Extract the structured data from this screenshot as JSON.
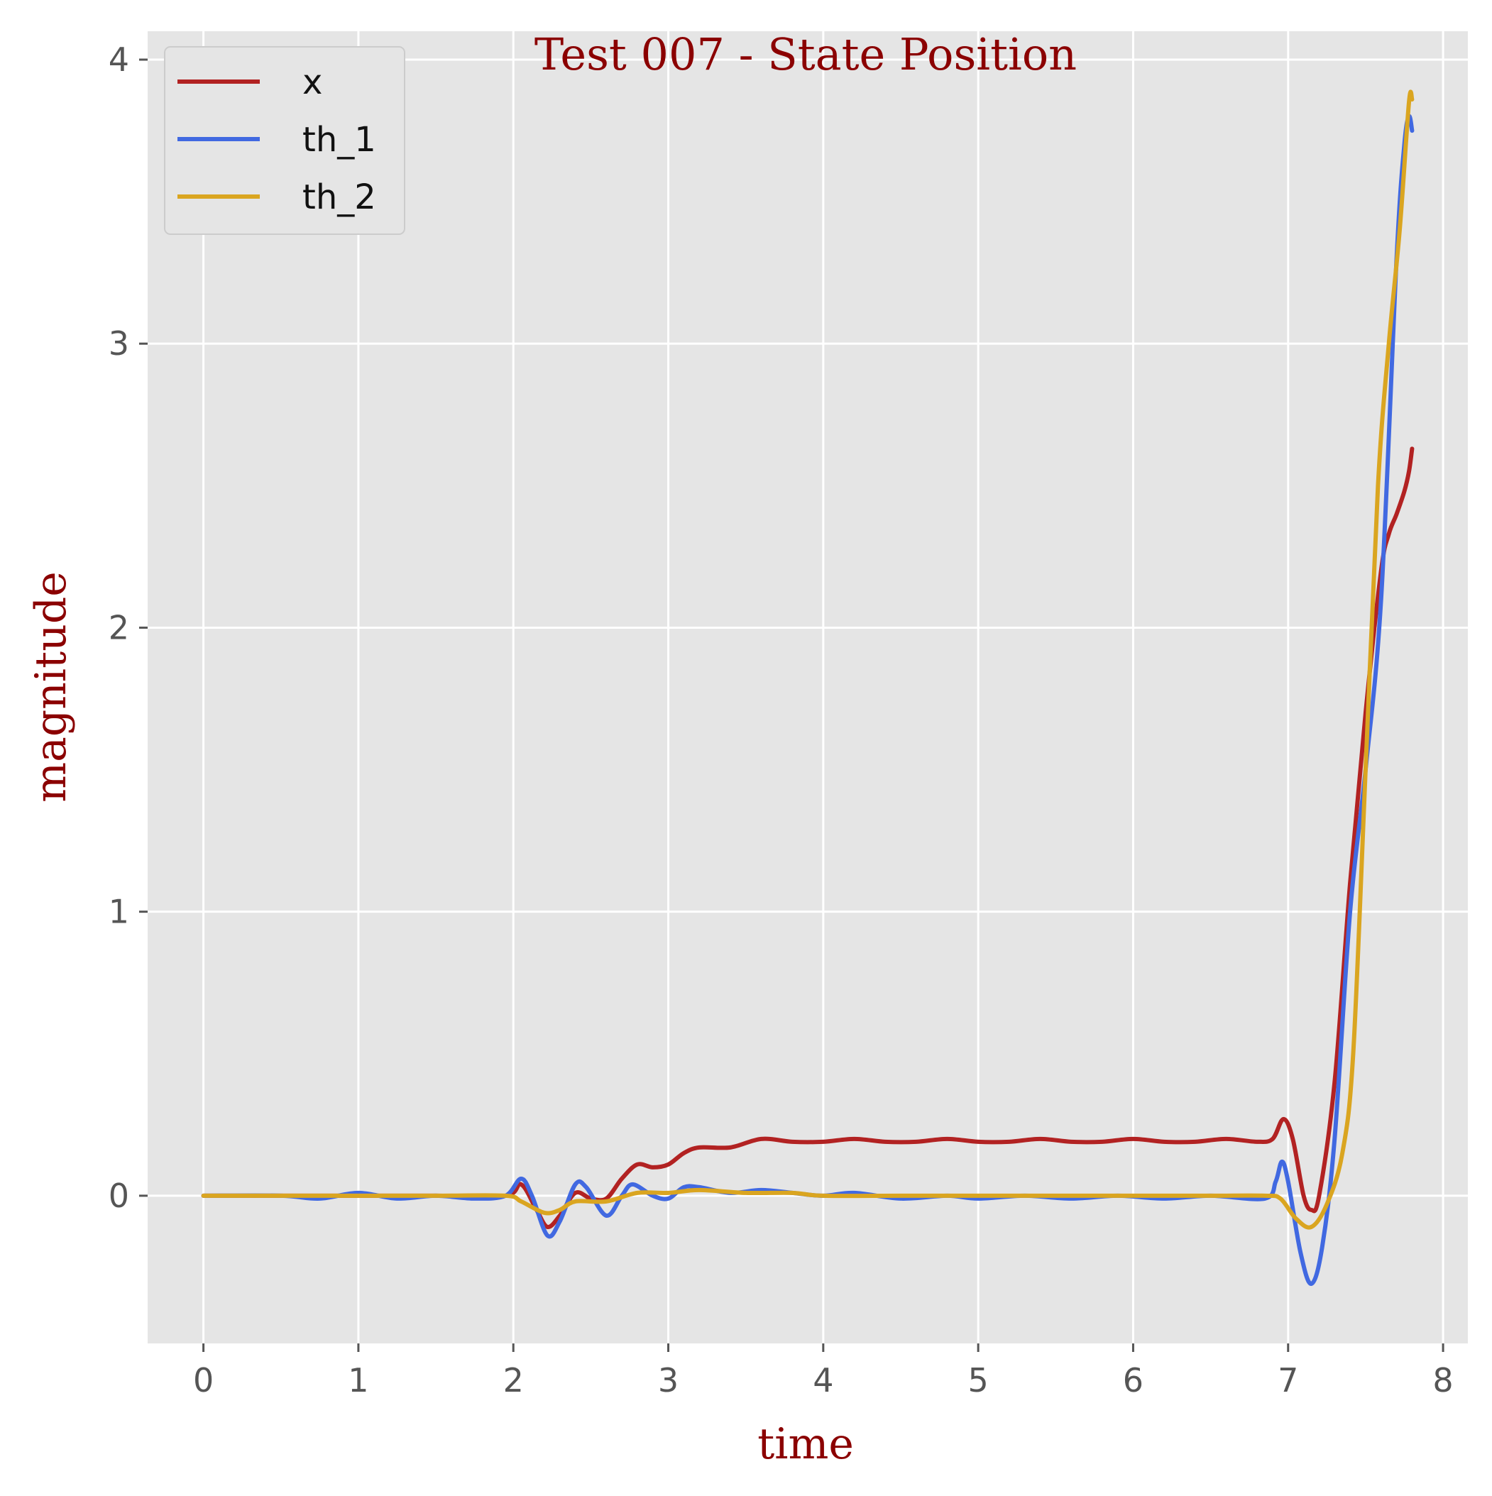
{
  "chart_data": {
    "type": "line",
    "title": "Test 007 - State Position",
    "xlabel": "time",
    "ylabel": "magnitude",
    "xlim": [
      -0.36,
      8.16
    ],
    "ylim": [
      -0.52,
      4.1
    ],
    "xticks": [
      0,
      1,
      2,
      3,
      4,
      5,
      6,
      7,
      8
    ],
    "yticks": [
      0,
      1,
      2,
      3,
      4
    ],
    "grid": true,
    "legend_position": "top-left",
    "colors": {
      "background": "#e5e5e5",
      "grid": "#ffffff",
      "title": "#8b0000"
    },
    "series": [
      {
        "name": "x",
        "color": "#b22222",
        "points": [
          [
            0,
            0
          ],
          [
            0.5,
            0
          ],
          [
            1,
            0
          ],
          [
            1.5,
            0
          ],
          [
            1.95,
            0
          ],
          [
            2.05,
            0.04
          ],
          [
            2.15,
            -0.05
          ],
          [
            2.22,
            -0.11
          ],
          [
            2.3,
            -0.07
          ],
          [
            2.4,
            0.01
          ],
          [
            2.5,
            -0.01
          ],
          [
            2.6,
            -0.01
          ],
          [
            2.7,
            0.06
          ],
          [
            2.8,
            0.11
          ],
          [
            2.9,
            0.1
          ],
          [
            3.0,
            0.11
          ],
          [
            3.1,
            0.15
          ],
          [
            3.2,
            0.17
          ],
          [
            3.4,
            0.17
          ],
          [
            3.6,
            0.2
          ],
          [
            3.8,
            0.19
          ],
          [
            4.0,
            0.19
          ],
          [
            4.2,
            0.2
          ],
          [
            4.4,
            0.19
          ],
          [
            4.6,
            0.19
          ],
          [
            4.8,
            0.2
          ],
          [
            5.0,
            0.19
          ],
          [
            5.2,
            0.19
          ],
          [
            5.4,
            0.2
          ],
          [
            5.6,
            0.19
          ],
          [
            5.8,
            0.19
          ],
          [
            6.0,
            0.2
          ],
          [
            6.2,
            0.19
          ],
          [
            6.4,
            0.19
          ],
          [
            6.6,
            0.2
          ],
          [
            6.8,
            0.19
          ],
          [
            6.9,
            0.2
          ],
          [
            6.97,
            0.27
          ],
          [
            7.03,
            0.2
          ],
          [
            7.1,
            0.0
          ],
          [
            7.15,
            -0.05
          ],
          [
            7.2,
            0.0
          ],
          [
            7.3,
            0.4
          ],
          [
            7.4,
            1.1
          ],
          [
            7.5,
            1.7
          ],
          [
            7.6,
            2.2
          ],
          [
            7.65,
            2.33
          ],
          [
            7.7,
            2.4
          ],
          [
            7.75,
            2.48
          ],
          [
            7.78,
            2.55
          ],
          [
            7.8,
            2.63
          ]
        ]
      },
      {
        "name": "th_1",
        "color": "#4169e1",
        "points": [
          [
            0,
            0
          ],
          [
            0.5,
            0
          ],
          [
            0.75,
            -0.01
          ],
          [
            1.0,
            0.01
          ],
          [
            1.25,
            -0.01
          ],
          [
            1.5,
            0.0
          ],
          [
            1.75,
            -0.01
          ],
          [
            1.95,
            0.0
          ],
          [
            2.05,
            0.06
          ],
          [
            2.12,
            0.0
          ],
          [
            2.22,
            -0.14
          ],
          [
            2.3,
            -0.09
          ],
          [
            2.4,
            0.04
          ],
          [
            2.47,
            0.03
          ],
          [
            2.6,
            -0.07
          ],
          [
            2.7,
            0.0
          ],
          [
            2.77,
            0.04
          ],
          [
            2.9,
            0.0
          ],
          [
            3.0,
            -0.01
          ],
          [
            3.1,
            0.03
          ],
          [
            3.2,
            0.03
          ],
          [
            3.4,
            0.01
          ],
          [
            3.6,
            0.02
          ],
          [
            3.8,
            0.01
          ],
          [
            4.0,
            0.0
          ],
          [
            4.2,
            0.01
          ],
          [
            4.5,
            -0.01
          ],
          [
            4.8,
            0.0
          ],
          [
            5.0,
            -0.01
          ],
          [
            5.3,
            0.0
          ],
          [
            5.6,
            -0.01
          ],
          [
            5.9,
            0.0
          ],
          [
            6.2,
            -0.01
          ],
          [
            6.5,
            0.0
          ],
          [
            6.85,
            -0.01
          ],
          [
            6.92,
            0.05
          ],
          [
            6.96,
            0.12
          ],
          [
            7.0,
            0.05
          ],
          [
            7.08,
            -0.2
          ],
          [
            7.15,
            -0.31
          ],
          [
            7.22,
            -0.18
          ],
          [
            7.3,
            0.2
          ],
          [
            7.4,
            1.0
          ],
          [
            7.5,
            1.5
          ],
          [
            7.6,
            2.1
          ],
          [
            7.7,
            3.3
          ],
          [
            7.75,
            3.7
          ],
          [
            7.78,
            3.8
          ],
          [
            7.8,
            3.75
          ]
        ]
      },
      {
        "name": "th_2",
        "color": "#daa520",
        "points": [
          [
            0,
            0
          ],
          [
            0.5,
            0
          ],
          [
            1,
            0
          ],
          [
            1.5,
            0
          ],
          [
            1.95,
            0
          ],
          [
            2.05,
            -0.02
          ],
          [
            2.2,
            -0.06
          ],
          [
            2.3,
            -0.05
          ],
          [
            2.4,
            -0.02
          ],
          [
            2.6,
            -0.02
          ],
          [
            2.8,
            0.01
          ],
          [
            3.0,
            0.01
          ],
          [
            3.2,
            0.02
          ],
          [
            3.5,
            0.01
          ],
          [
            3.8,
            0.01
          ],
          [
            4.0,
            0.0
          ],
          [
            4.5,
            0.0
          ],
          [
            5.0,
            0.0
          ],
          [
            5.5,
            0.0
          ],
          [
            6.0,
            0.0
          ],
          [
            6.5,
            0.0
          ],
          [
            6.85,
            0.0
          ],
          [
            6.95,
            -0.01
          ],
          [
            7.05,
            -0.08
          ],
          [
            7.15,
            -0.11
          ],
          [
            7.25,
            -0.03
          ],
          [
            7.35,
            0.15
          ],
          [
            7.42,
            0.5
          ],
          [
            7.5,
            1.5
          ],
          [
            7.58,
            2.5
          ],
          [
            7.65,
            3.0
          ],
          [
            7.72,
            3.4
          ],
          [
            7.78,
            3.85
          ],
          [
            7.8,
            3.86
          ]
        ]
      }
    ]
  }
}
